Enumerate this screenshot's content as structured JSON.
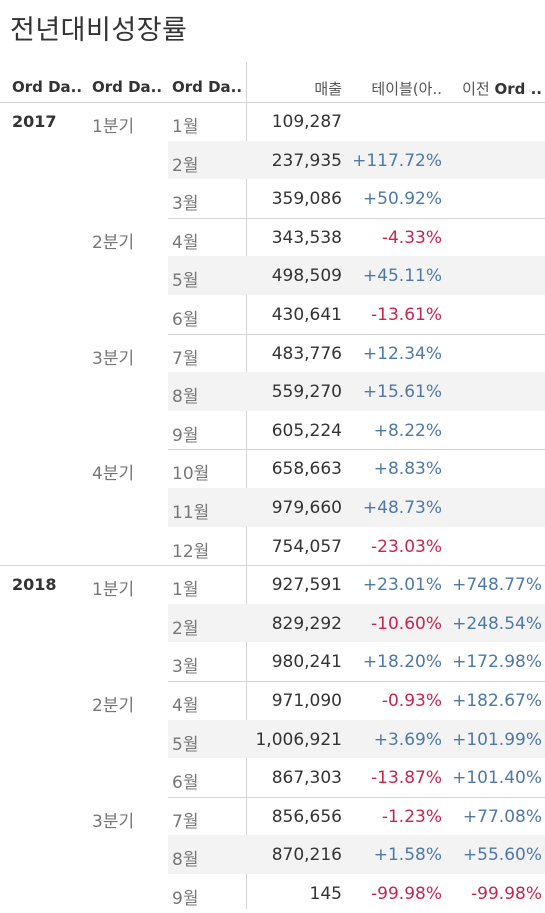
{
  "title": "전년대비성장률",
  "headers": {
    "year": "Ord Da..",
    "quarter": "Ord Da..",
    "month": "Ord Da..",
    "sales": "매출",
    "yoy": "테이블(아..",
    "prev_prefix": "이전 ",
    "prev_bold": "Ord .."
  },
  "colors": {
    "positive": "#4e79a7",
    "negative": "#c7254e",
    "band": "#f3f3f3"
  },
  "rows": [
    {
      "year": "2017",
      "quarter": "1분기",
      "month": "1월",
      "sales": "109,287",
      "yoy": "",
      "prev": ""
    },
    {
      "year": "",
      "quarter": "",
      "month": "2월",
      "sales": "237,935",
      "yoy": "+117.72%",
      "prev": ""
    },
    {
      "year": "",
      "quarter": "",
      "month": "3월",
      "sales": "359,086",
      "yoy": "+50.92%",
      "prev": ""
    },
    {
      "year": "",
      "quarter": "2분기",
      "month": "4월",
      "sales": "343,538",
      "yoy": "-4.33%",
      "prev": ""
    },
    {
      "year": "",
      "quarter": "",
      "month": "5월",
      "sales": "498,509",
      "yoy": "+45.11%",
      "prev": ""
    },
    {
      "year": "",
      "quarter": "",
      "month": "6월",
      "sales": "430,641",
      "yoy": "-13.61%",
      "prev": ""
    },
    {
      "year": "",
      "quarter": "3분기",
      "month": "7월",
      "sales": "483,776",
      "yoy": "+12.34%",
      "prev": ""
    },
    {
      "year": "",
      "quarter": "",
      "month": "8월",
      "sales": "559,270",
      "yoy": "+15.61%",
      "prev": ""
    },
    {
      "year": "",
      "quarter": "",
      "month": "9월",
      "sales": "605,224",
      "yoy": "+8.22%",
      "prev": ""
    },
    {
      "year": "",
      "quarter": "4분기",
      "month": "10월",
      "sales": "658,663",
      "yoy": "+8.83%",
      "prev": ""
    },
    {
      "year": "",
      "quarter": "",
      "month": "11월",
      "sales": "979,660",
      "yoy": "+48.73%",
      "prev": ""
    },
    {
      "year": "",
      "quarter": "",
      "month": "12월",
      "sales": "754,057",
      "yoy": "-23.03%",
      "prev": ""
    },
    {
      "year": "2018",
      "quarter": "1분기",
      "month": "1월",
      "sales": "927,591",
      "yoy": "+23.01%",
      "prev": "+748.77%"
    },
    {
      "year": "",
      "quarter": "",
      "month": "2월",
      "sales": "829,292",
      "yoy": "-10.60%",
      "prev": "+248.54%"
    },
    {
      "year": "",
      "quarter": "",
      "month": "3월",
      "sales": "980,241",
      "yoy": "+18.20%",
      "prev": "+172.98%"
    },
    {
      "year": "",
      "quarter": "2분기",
      "month": "4월",
      "sales": "971,090",
      "yoy": "-0.93%",
      "prev": "+182.67%"
    },
    {
      "year": "",
      "quarter": "",
      "month": "5월",
      "sales": "1,006,921",
      "yoy": "+3.69%",
      "prev": "+101.99%"
    },
    {
      "year": "",
      "quarter": "",
      "month": "6월",
      "sales": "867,303",
      "yoy": "-13.87%",
      "prev": "+101.40%"
    },
    {
      "year": "",
      "quarter": "3분기",
      "month": "7월",
      "sales": "856,656",
      "yoy": "-1.23%",
      "prev": "+77.08%"
    },
    {
      "year": "",
      "quarter": "",
      "month": "8월",
      "sales": "870,216",
      "yoy": "+1.58%",
      "prev": "+55.60%"
    },
    {
      "year": "",
      "quarter": "",
      "month": "9월",
      "sales": "145",
      "yoy": "-99.98%",
      "prev": "-99.98%"
    }
  ]
}
